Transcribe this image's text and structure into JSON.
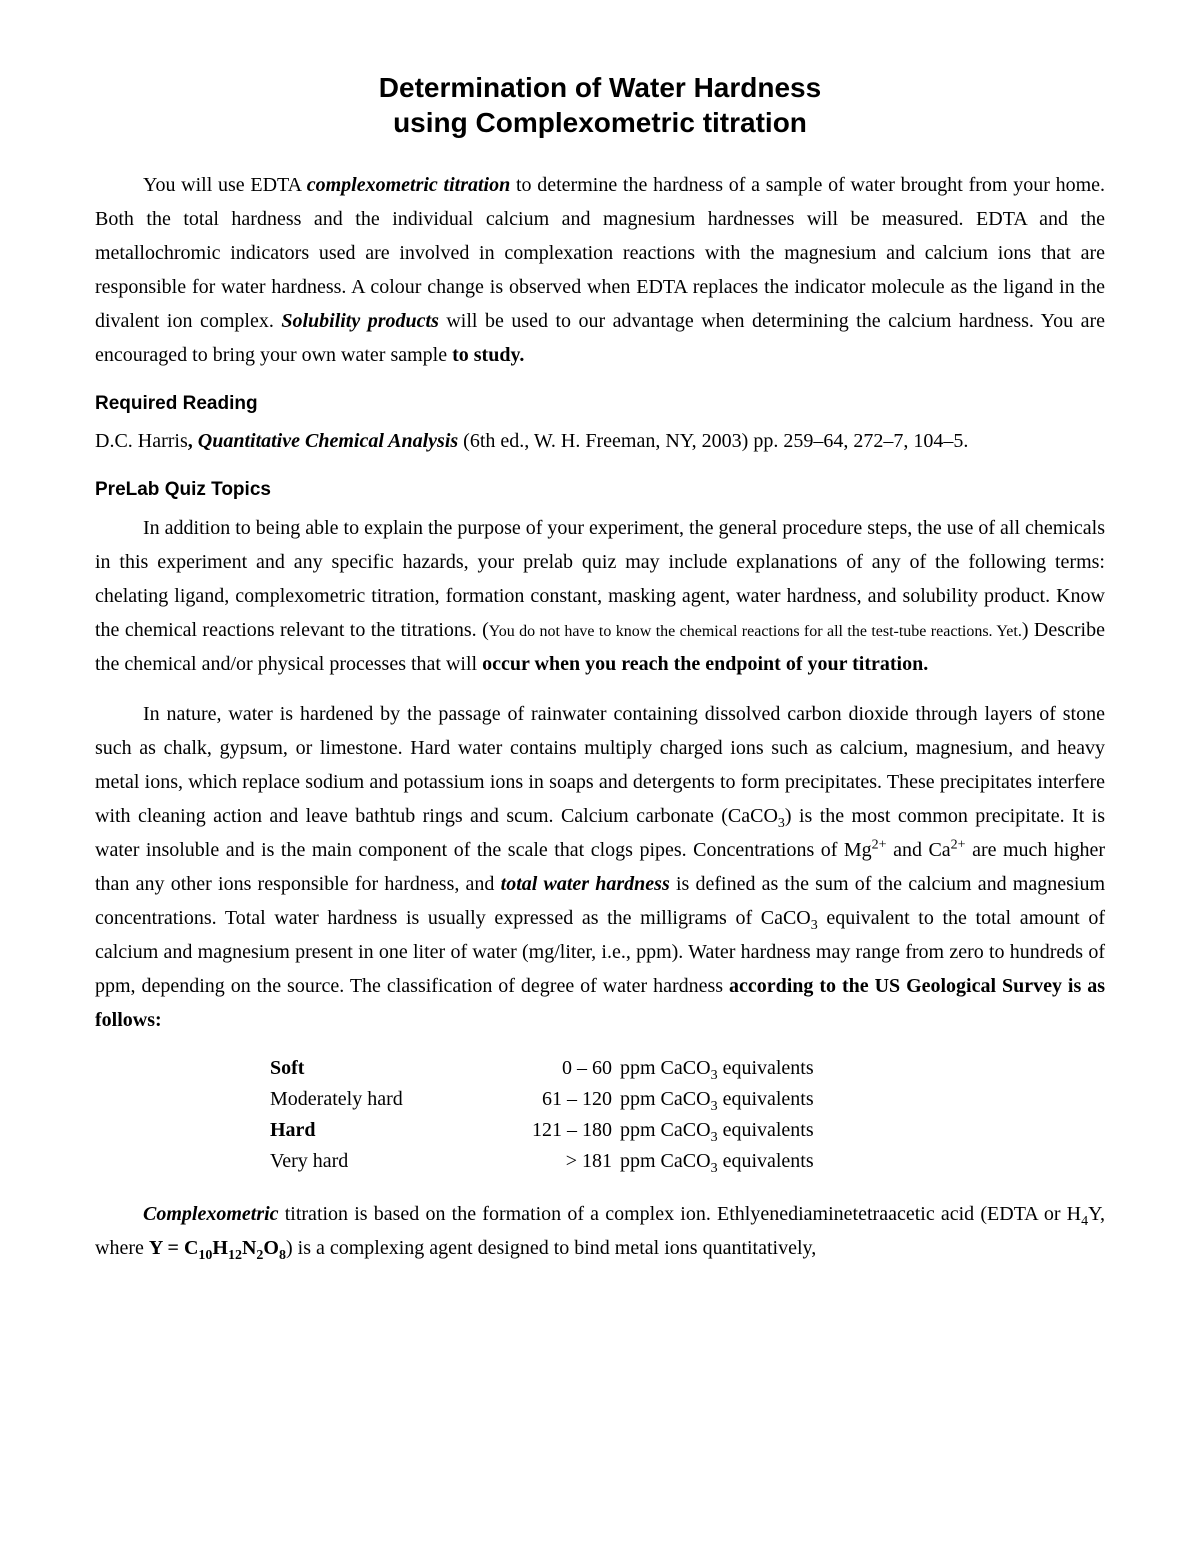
{
  "title": {
    "line1": "Determination of Water Hardness",
    "line2": "using Complexometric titration"
  },
  "intro": {
    "pre1": "You will use EDTA ",
    "em1": "complexometric titration",
    "mid1": " to determine the hardness of a sample of water brought from your home. Both the total hardness and the individual calcium and magnesium hardnesses will be measured. EDTA and the metallochromic indicators used are involved in complexation reactions with the magnesium and calcium ions that are responsible for water hardness. A colour change is observed when EDTA replaces the indicator molecule as the ligand in the divalent ion complex. ",
    "em2": "Solubility products",
    "mid2": " will be used to our advantage when determining the calcium hardness. You are encouraged to bring your own water sample ",
    "b_end": "to study."
  },
  "reading": {
    "head": "Required Reading",
    "author": "D.C. Harris",
    "comma": ", ",
    "book": "Quantitative Chemical Analysis",
    "rest": " (6th ed., W. H. Freeman, NY, 2003) pp. 259–64, 272–7, 104–5."
  },
  "prelab": {
    "head": "PreLab Quiz Topics",
    "p1_a": "In addition to being able to explain the purpose of your experiment, the general procedure steps, the use of all chemicals in this experiment and any specific hazards, your prelab quiz may include explanations of any of the following terms: chelating ligand, complexometric titration, formation constant, masking agent, water hardness, and solubility product. Know the chemical reactions relevant to the titrations. (",
    "p1_small": "You do not have to know the chemical reactions for all the test-tube reactions. Yet.",
    "p1_b": ") Describe the chemical and/or physical processes that will ",
    "p1_bold": "occur when you reach the endpoint of your titration."
  },
  "nature": {
    "a": "In nature, water is hardened by the passage of rainwater containing dissolved carbon dioxide through layers of stone such as chalk, gypsum, or limestone. Hard water contains multiply charged ions such as calcium, magnesium, and heavy metal ions, which replace sodium and potassium ions in soaps and detergents to form precipitates. These precipitates interfere with cleaning action and leave bathtub rings and scum. Calcium carbonate (CaCO",
    "sub3a": "3",
    "b": ") is the most common precipitate. It is water insoluble and is the main component of the scale that clogs pipes. Concentrations of Mg",
    "sup2a": "2+",
    "c": " and Ca",
    "sup2b": "2+",
    "d": " are much higher than any other ions responsible for hardness, and ",
    "em": "total water hardness",
    "e": " is defined as the sum of the calcium and magnesium concentrations. Total water hardness is usually expressed as the milligrams of CaCO",
    "sub3b": "3",
    "f": " equivalent to the total amount of calcium and magnesium present in one liter of water (mg/liter, i.e., ppm). Water hardness may range from zero to hundreds of ppm, depending on the source. The classification of degree of water hardness ",
    "bold_end": "according to the US Geological Survey is as follows:"
  },
  "table": {
    "rows": [
      {
        "label": "Soft",
        "bold": true,
        "range": "0 – 60",
        "unit_prefix": "ppm CaCO",
        "sub": "3",
        "unit_suffix": " equivalents"
      },
      {
        "label": "Moderately hard",
        "bold": false,
        "range": "61 – 120",
        "unit_prefix": "ppm CaCO",
        "sub": "3",
        "unit_suffix": " equivalents"
      },
      {
        "label": "Hard",
        "bold": true,
        "range": "121 – 180",
        "unit_prefix": "ppm CaCO",
        "sub": "3",
        "unit_suffix": " equivalents"
      },
      {
        "label": "Very hard",
        "bold": false,
        "range": "> 181",
        "unit_prefix": "ppm CaCO",
        "sub": "3",
        "unit_suffix": " equivalents"
      }
    ]
  },
  "complexo": {
    "em": "Complexometric",
    "a": " titration is based on the formation of a complex ion. Ethlyenediaminetetraacetic acid (EDTA or H",
    "sub4": "4",
    "b": "Y, where ",
    "bold_y": "Y = C",
    "sub10": "10",
    "bold_h": "H",
    "sub12": "12",
    "bold_n": "N",
    "sub2": "2",
    "bold_o": "O",
    "sub8": "8",
    "c": ") is a complexing agent designed to bind metal ions quantitatively,"
  }
}
